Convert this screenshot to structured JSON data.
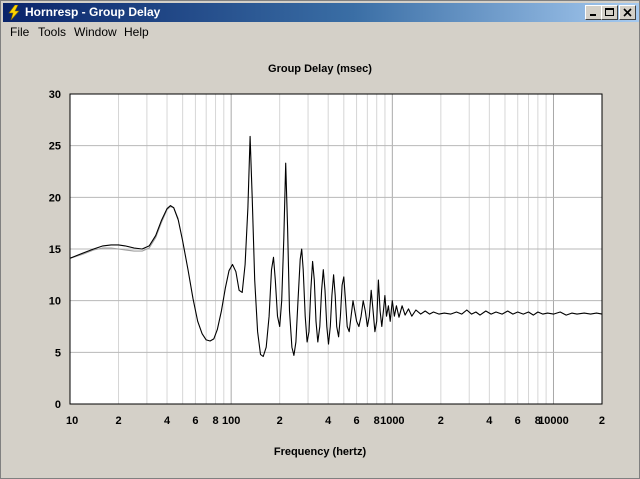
{
  "window": {
    "title": "Hornresp - Group Delay"
  },
  "menu": [
    "File",
    "Tools",
    "Window",
    "Help"
  ],
  "chart_data": {
    "type": "line",
    "title": "Group Delay (msec)",
    "xlabel": "Frequency (hertz)",
    "ylabel": "",
    "x_scale": "log",
    "xlim": [
      10,
      20000
    ],
    "ylim": [
      0,
      30
    ],
    "grid": true,
    "y_ticks": [
      0,
      5,
      10,
      15,
      20,
      25,
      30
    ],
    "x_tick_labels": [
      {
        "value": 10,
        "label": "10"
      },
      {
        "value": 20,
        "label": "2"
      },
      {
        "value": 40,
        "label": "4"
      },
      {
        "value": 60,
        "label": "6"
      },
      {
        "value": 80,
        "label": "8"
      },
      {
        "value": 100,
        "label": "100"
      },
      {
        "value": 200,
        "label": "2"
      },
      {
        "value": 400,
        "label": "4"
      },
      {
        "value": 600,
        "label": "6"
      },
      {
        "value": 800,
        "label": "8"
      },
      {
        "value": 1000,
        "label": "1000"
      },
      {
        "value": 2000,
        "label": "2"
      },
      {
        "value": 4000,
        "label": "4"
      },
      {
        "value": 6000,
        "label": "6"
      },
      {
        "value": 8000,
        "label": "8"
      },
      {
        "value": 10000,
        "label": "10000"
      },
      {
        "value": 20000,
        "label": "2"
      }
    ],
    "series": [
      {
        "color": "#000000",
        "points": [
          [
            10,
            14.1
          ],
          [
            12,
            14.6
          ],
          [
            14,
            15.0
          ],
          [
            16,
            15.3
          ],
          [
            18,
            15.4
          ],
          [
            20,
            15.4
          ],
          [
            22,
            15.3
          ],
          [
            25,
            15.1
          ],
          [
            28,
            15.0
          ],
          [
            31,
            15.3
          ],
          [
            34,
            16.3
          ],
          [
            37,
            17.8
          ],
          [
            40,
            18.9
          ],
          [
            42,
            19.2
          ],
          [
            44,
            19.0
          ],
          [
            47,
            17.8
          ],
          [
            50,
            15.8
          ],
          [
            54,
            13.0
          ],
          [
            58,
            10.2
          ],
          [
            62,
            8.0
          ],
          [
            66,
            6.8
          ],
          [
            70,
            6.2
          ],
          [
            74,
            6.1
          ],
          [
            78,
            6.3
          ],
          [
            82,
            7.2
          ],
          [
            87,
            9.0
          ],
          [
            92,
            11.2
          ],
          [
            97,
            12.9
          ],
          [
            102,
            13.5
          ],
          [
            107,
            12.8
          ],
          [
            112,
            11.0
          ],
          [
            117,
            10.8
          ],
          [
            122,
            13.5
          ],
          [
            127,
            19.0
          ],
          [
            131,
            25.9
          ],
          [
            135,
            20.0
          ],
          [
            140,
            12.0
          ],
          [
            146,
            7.0
          ],
          [
            152,
            4.8
          ],
          [
            158,
            4.6
          ],
          [
            165,
            5.5
          ],
          [
            172,
            8.5
          ],
          [
            178,
            13.0
          ],
          [
            183,
            14.2
          ],
          [
            188,
            12.0
          ],
          [
            194,
            8.5
          ],
          [
            200,
            7.5
          ],
          [
            206,
            10.0
          ],
          [
            212,
            16.0
          ],
          [
            218,
            23.3
          ],
          [
            224,
            17.0
          ],
          [
            230,
            9.0
          ],
          [
            238,
            5.5
          ],
          [
            245,
            4.7
          ],
          [
            252,
            6.0
          ],
          [
            260,
            10.0
          ],
          [
            268,
            14.0
          ],
          [
            274,
            15.0
          ],
          [
            280,
            13.0
          ],
          [
            288,
            8.5
          ],
          [
            296,
            6.0
          ],
          [
            304,
            7.0
          ],
          [
            312,
            11.0
          ],
          [
            320,
            13.8
          ],
          [
            328,
            12.0
          ],
          [
            336,
            8.0
          ],
          [
            345,
            6.0
          ],
          [
            355,
            7.5
          ],
          [
            364,
            11.0
          ],
          [
            373,
            13.0
          ],
          [
            382,
            11.0
          ],
          [
            392,
            7.5
          ],
          [
            402,
            5.8
          ],
          [
            412,
            7.5
          ],
          [
            422,
            10.5
          ],
          [
            432,
            12.5
          ],
          [
            442,
            10.5
          ],
          [
            452,
            7.5
          ],
          [
            464,
            6.5
          ],
          [
            476,
            8.5
          ],
          [
            488,
            11.5
          ],
          [
            500,
            12.3
          ],
          [
            512,
            10.0
          ],
          [
            525,
            7.5
          ],
          [
            540,
            7.0
          ],
          [
            555,
            8.5
          ],
          [
            570,
            10.0
          ],
          [
            585,
            9.0
          ],
          [
            600,
            8.0
          ],
          [
            620,
            7.5
          ],
          [
            640,
            8.5
          ],
          [
            660,
            10.0
          ],
          [
            680,
            9.0
          ],
          [
            700,
            7.5
          ],
          [
            720,
            8.5
          ],
          [
            740,
            11.0
          ],
          [
            760,
            9.0
          ],
          [
            780,
            7.0
          ],
          [
            800,
            8.0
          ],
          [
            820,
            12.0
          ],
          [
            840,
            9.0
          ],
          [
            860,
            7.5
          ],
          [
            880,
            9.0
          ],
          [
            900,
            10.5
          ],
          [
            920,
            8.5
          ],
          [
            945,
            9.5
          ],
          [
            970,
            8.0
          ],
          [
            1000,
            10.0
          ],
          [
            1030,
            8.5
          ],
          [
            1060,
            9.5
          ],
          [
            1100,
            8.4
          ],
          [
            1150,
            9.5
          ],
          [
            1200,
            8.6
          ],
          [
            1260,
            9.2
          ],
          [
            1320,
            8.5
          ],
          [
            1400,
            9.1
          ],
          [
            1500,
            8.7
          ],
          [
            1600,
            9.0
          ],
          [
            1700,
            8.7
          ],
          [
            1800,
            8.9
          ],
          [
            1950,
            8.7
          ],
          [
            2100,
            8.8
          ],
          [
            2300,
            8.7
          ],
          [
            2500,
            8.9
          ],
          [
            2700,
            8.7
          ],
          [
            2900,
            9.1
          ],
          [
            3100,
            8.7
          ],
          [
            3300,
            8.9
          ],
          [
            3500,
            8.6
          ],
          [
            3800,
            9.0
          ],
          [
            4100,
            8.7
          ],
          [
            4400,
            8.9
          ],
          [
            4800,
            8.7
          ],
          [
            5200,
            9.0
          ],
          [
            5600,
            8.7
          ],
          [
            6000,
            8.9
          ],
          [
            6500,
            8.7
          ],
          [
            7000,
            8.9
          ],
          [
            7500,
            8.6
          ],
          [
            8000,
            8.9
          ],
          [
            8600,
            8.7
          ],
          [
            9200,
            8.8
          ],
          [
            10000,
            8.7
          ],
          [
            11000,
            8.9
          ],
          [
            12000,
            8.6
          ],
          [
            13000,
            8.8
          ],
          [
            14000,
            8.7
          ],
          [
            15500,
            8.8
          ],
          [
            17000,
            8.7
          ],
          [
            18500,
            8.8
          ],
          [
            20000,
            8.7
          ]
        ]
      },
      {
        "color": "#a0a0a0",
        "points": [
          [
            10,
            14.1
          ],
          [
            12,
            14.5
          ],
          [
            14,
            14.9
          ],
          [
            16,
            15.1
          ],
          [
            18,
            15.1
          ],
          [
            20,
            15.0
          ],
          [
            22,
            14.9
          ],
          [
            25,
            14.8
          ],
          [
            28,
            14.8
          ],
          [
            31,
            15.1
          ],
          [
            34,
            16.1
          ],
          [
            37,
            17.6
          ],
          [
            40,
            18.8
          ],
          [
            42,
            19.1
          ],
          [
            44,
            19.0
          ],
          [
            47,
            17.9
          ]
        ]
      }
    ]
  }
}
